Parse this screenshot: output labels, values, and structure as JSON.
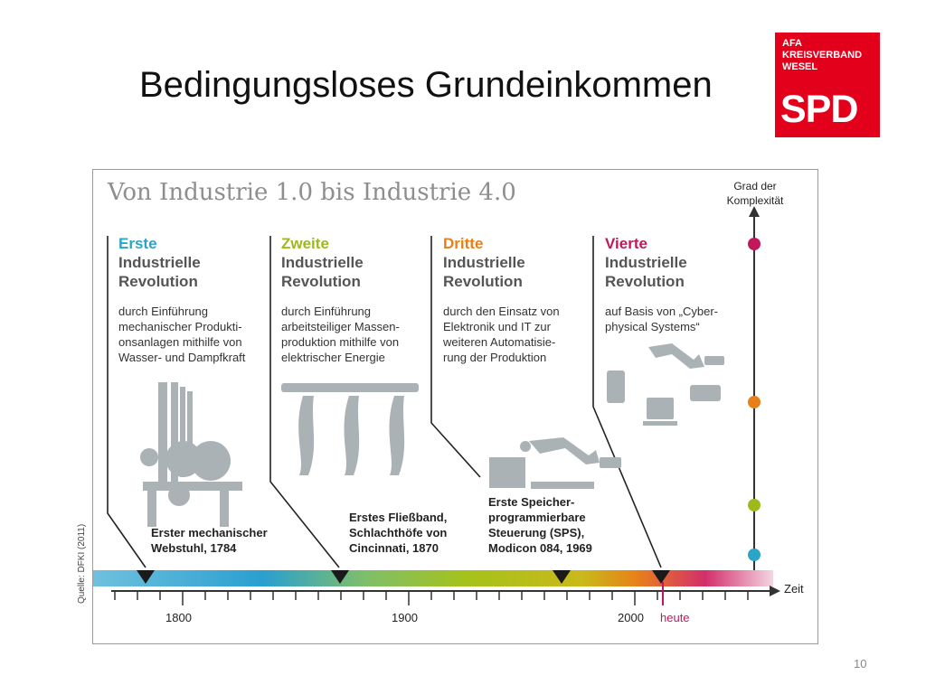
{
  "slide": {
    "title": "Bedingungsloses Grundeinkommen",
    "page_number": "10",
    "footer": ""
  },
  "logo": {
    "org_lines": [
      "AFA",
      "KREISVERBAND",
      "WESEL"
    ],
    "party": "SPD",
    "color": "#e2001a"
  },
  "figure": {
    "title": "Von Industrie 1.0 bis Industrie 4.0",
    "source": "Quelle: DFKI (2011)",
    "y_axis_label": "Grad der Komplexität",
    "x_axis_label": "Zeit",
    "ticks": [
      "1800",
      "1900",
      "2000",
      "heute"
    ],
    "revolutions": [
      {
        "number": "Erste",
        "label1": "Industrielle",
        "label2": "Revolution",
        "color": "#2aa4c9",
        "desc": [
          "durch Einführung",
          "mechanischer Produkti-",
          "onsanlagen mithilfe von",
          "Wasser- und Dampfkraft"
        ],
        "milestone": [
          "Erster mechanischer",
          "Webstuhl, 1784"
        ]
      },
      {
        "number": "Zweite",
        "label1": "Industrielle",
        "label2": "Revolution",
        "color": "#9cbb1a",
        "desc": [
          "durch Einführung",
          "arbeitsteiliger Massen-",
          "produktion mithilfe von",
          "elektrischer Energie"
        ],
        "milestone": [
          "Erstes Fließband,",
          "Schlachthöfe von",
          "Cincinnati, 1870"
        ]
      },
      {
        "number": "Dritte",
        "label1": "Industrielle",
        "label2": "Revolution",
        "color": "#e8801a",
        "desc": [
          "durch den Einsatz von",
          "Elektronik und IT zur",
          "weiteren Automatisie-",
          "rung der Produktion"
        ],
        "milestone": [
          "Erste Speicher-",
          "programmierbare",
          "Steuerung (SPS),",
          "Modicon 084, 1969"
        ]
      },
      {
        "number": "Vierte",
        "label1": "Industrielle",
        "label2": "Revolution",
        "color": "#c2185b",
        "desc": [
          "auf Basis von „Cyber-",
          "physical Systems“"
        ],
        "milestone": []
      }
    ]
  }
}
